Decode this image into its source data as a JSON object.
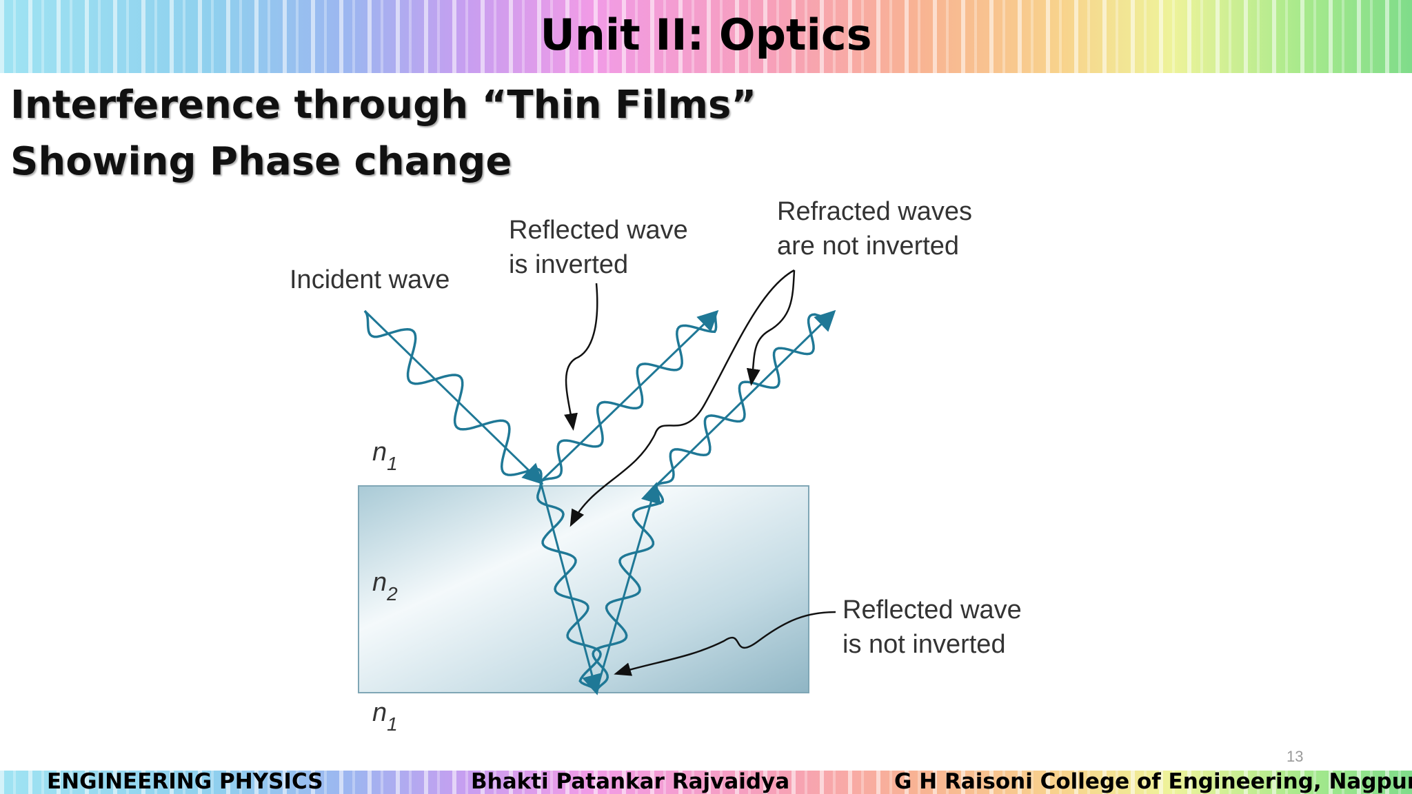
{
  "header": {
    "title": "Unit II: Optics"
  },
  "slide": {
    "title_lines": [
      "Interference through “Thin Films”",
      "Showing Phase change"
    ]
  },
  "diagram": {
    "incident_label": "Incident wave",
    "reflected_inverted_label": [
      "Reflected wave",
      "is inverted"
    ],
    "refracted_label": [
      "Refracted waves",
      "are not inverted"
    ],
    "reflected_not_inverted_label": [
      "Reflected wave",
      "is not inverted"
    ],
    "media": [
      {
        "symbol": "n",
        "subscript": "1"
      },
      {
        "symbol": "n",
        "subscript": "2"
      },
      {
        "symbol": "n",
        "subscript": "1"
      }
    ]
  },
  "page_number": "13",
  "footer": {
    "course": "ENGINEERING PHYSICS",
    "author": "Bhakti Patankar Rajvaidya",
    "college": "G H Raisoni College of Engineering, Nagpur"
  }
}
